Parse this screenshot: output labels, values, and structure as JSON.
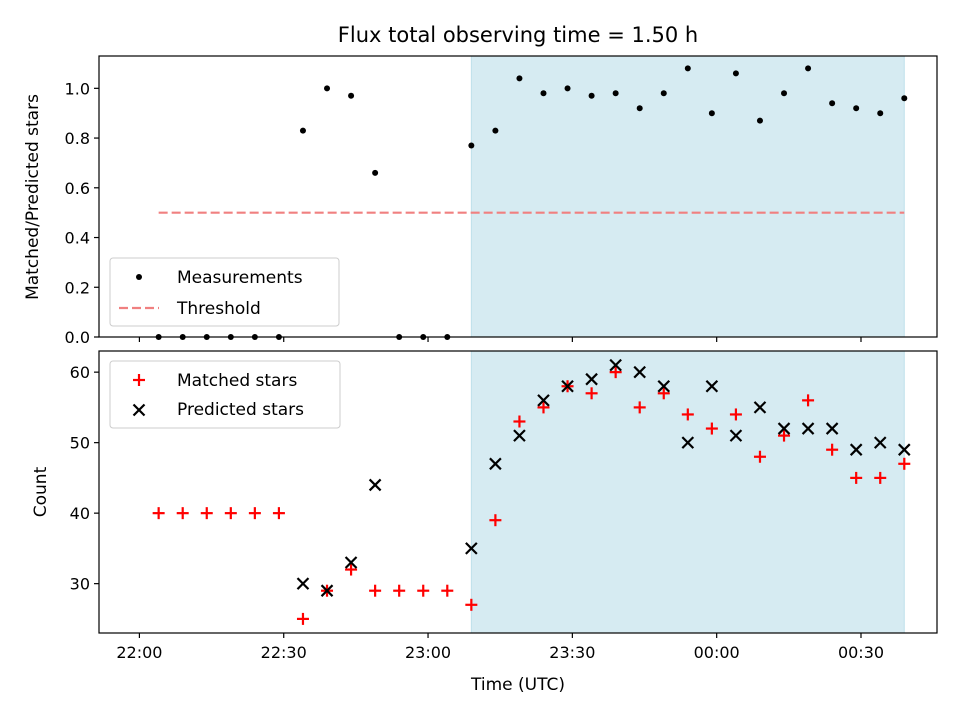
{
  "title": "Flux total observing time = 1.50 h",
  "chart_data": [
    {
      "type": "scatter",
      "ylabel": "Matched/Predicted stars",
      "ylim": [
        0,
        1.13
      ],
      "yticks": [
        0.0,
        0.2,
        0.4,
        0.6,
        0.8,
        1.0
      ],
      "ytick_labels": [
        "0.0",
        "0.2",
        "0.4",
        "0.6",
        "0.8",
        "1.0"
      ],
      "shaded_region": {
        "from": "23:09",
        "to": "00:39",
        "color": "#add8e6"
      },
      "threshold": {
        "from": "22:04",
        "to": "00:39",
        "value": 0.5,
        "color": "#f08080"
      },
      "legend": {
        "position": "lower-left",
        "entries": [
          "Measurements",
          "Threshold"
        ]
      },
      "x": [
        "22:04",
        "22:09",
        "22:14",
        "22:19",
        "22:24",
        "22:29",
        "22:34",
        "22:39",
        "22:44",
        "22:49",
        "22:54",
        "22:59",
        "23:04",
        "23:09",
        "23:14",
        "23:19",
        "23:24",
        "23:29",
        "23:34",
        "23:39",
        "23:44",
        "23:49",
        "23:54",
        "23:59",
        "00:04",
        "00:09",
        "00:14",
        "00:19",
        "00:24",
        "00:29",
        "00:34",
        "00:39"
      ],
      "series": [
        {
          "name": "Measurements",
          "values": [
            0,
            0,
            0,
            0,
            0,
            0,
            0.83,
            1.0,
            0.97,
            0.66,
            0,
            0,
            0,
            0.77,
            0.83,
            1.04,
            0.98,
            1.0,
            0.97,
            0.98,
            0.92,
            0.98,
            1.08,
            0.9,
            1.06,
            0.87,
            0.98,
            1.08,
            0.94,
            0.92,
            0.9,
            0.96
          ]
        },
        {
          "name": "Threshold",
          "values": [
            0.5,
            0.5
          ]
        }
      ]
    },
    {
      "type": "scatter",
      "xlabel": "Time (UTC)",
      "ylabel": "Count",
      "ylim": [
        23,
        63
      ],
      "yticks": [
        30,
        40,
        50,
        60
      ],
      "ytick_labels": [
        "30",
        "40",
        "50",
        "60"
      ],
      "xticks": [
        "22:00",
        "22:30",
        "23:00",
        "23:30",
        "00:00",
        "00:30"
      ],
      "shaded_region": {
        "from": "23:09",
        "to": "00:39",
        "color": "#add8e6"
      },
      "legend": {
        "position": "upper-left",
        "entries": [
          "Matched stars",
          "Predicted stars"
        ]
      },
      "x": [
        "22:04",
        "22:09",
        "22:14",
        "22:19",
        "22:24",
        "22:29",
        "22:34",
        "22:39",
        "22:44",
        "22:49",
        "22:54",
        "22:59",
        "23:04",
        "23:09",
        "23:14",
        "23:19",
        "23:24",
        "23:29",
        "23:34",
        "23:39",
        "23:44",
        "23:49",
        "23:54",
        "23:59",
        "00:04",
        "00:09",
        "00:14",
        "00:19",
        "00:24",
        "00:29",
        "00:34",
        "00:39"
      ],
      "series": [
        {
          "name": "Matched stars",
          "marker": "+",
          "color": "#ff0000",
          "values": [
            40,
            40,
            40,
            40,
            40,
            40,
            25,
            29,
            32,
            29,
            29,
            29,
            29,
            27,
            39,
            53,
            55,
            58,
            57,
            60,
            55,
            57,
            54,
            52,
            54,
            48,
            51,
            56,
            49,
            45,
            45,
            47
          ]
        },
        {
          "name": "Predicted stars",
          "marker": "x",
          "color": "#000000",
          "values": [
            null,
            null,
            null,
            null,
            null,
            null,
            30,
            29,
            33,
            44,
            null,
            null,
            null,
            35,
            47,
            51,
            56,
            58,
            59,
            61,
            60,
            58,
            50,
            58,
            51,
            55,
            52,
            52,
            52,
            49,
            50,
            49
          ]
        }
      ]
    }
  ]
}
